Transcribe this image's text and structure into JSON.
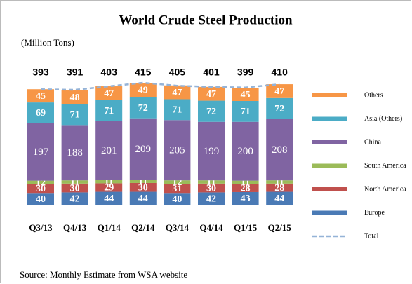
{
  "chart_data": {
    "type": "bar",
    "stacked": true,
    "title": "World Crude Steel Production",
    "subtitle": "(Million Tons)",
    "source": "Source: Monthly  Estimate from WSA website",
    "categories": [
      "Q3/13",
      "Q4/13",
      "Q1/14",
      "Q2/14",
      "Q3/14",
      "Q4/14",
      "Q1/15",
      "Q2/15"
    ],
    "series": [
      {
        "name": "Europe",
        "color": "#4a7ab5",
        "values": [
          40,
          42,
          44,
          44,
          40,
          42,
          43,
          44
        ]
      },
      {
        "name": "North America",
        "color": "#c0504d",
        "values": [
          30,
          30,
          29,
          30,
          31,
          30,
          28,
          28
        ]
      },
      {
        "name": "South America",
        "color": "#9bbb59",
        "values": [
          12,
          11,
          11,
          11,
          12,
          11,
          11,
          11
        ]
      },
      {
        "name": "China",
        "color": "#8064a2",
        "values": [
          197,
          188,
          201,
          209,
          205,
          199,
          200,
          208
        ]
      },
      {
        "name": "Asia (Others)",
        "color": "#4bacc6",
        "values": [
          69,
          71,
          71,
          72,
          71,
          72,
          71,
          72
        ]
      },
      {
        "name": "Others",
        "color": "#f79646",
        "values": [
          45,
          48,
          47,
          49,
          47,
          47,
          45,
          47
        ]
      },
      {
        "name": "Total",
        "type": "line",
        "color": "#95b3d7",
        "values": [
          393,
          391,
          403,
          415,
          405,
          401,
          399,
          410
        ]
      }
    ]
  }
}
